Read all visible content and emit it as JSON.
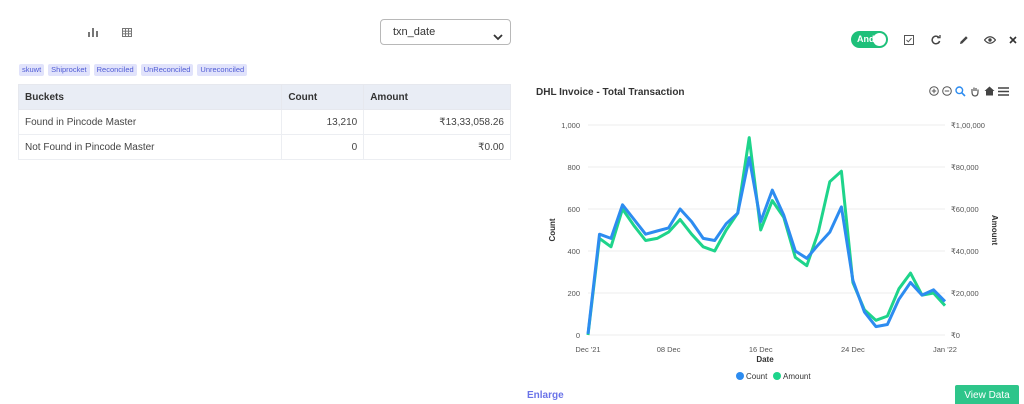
{
  "header": {
    "select": {
      "value": "txn_date"
    },
    "toggle_label": "And",
    "icons": [
      "bar-chart-icon",
      "table-icon",
      "checkbox-icon",
      "refresh-icon",
      "edit-icon",
      "eye-icon",
      "close-icon"
    ]
  },
  "tags": [
    "skuwt",
    "Shiprocket",
    "Reconciled",
    "UnReconciled",
    "Unreconciled"
  ],
  "table": {
    "headers": [
      "Buckets",
      "Count",
      "Amount"
    ],
    "rows": [
      [
        "Found in Pincode Master",
        "13,210",
        "₹13,33,058.26"
      ],
      [
        "Not Found in Pincode Master",
        "0",
        "₹0.00"
      ]
    ]
  },
  "chart_title": "DHL Invoice - Total Transaction",
  "chart_data": {
    "type": "line",
    "title": "DHL Invoice - Total Transaction",
    "xlabel": "Date",
    "ylabel": "Count",
    "y2label": "Amount",
    "x_ticks": [
      "Dec '21",
      "08 Dec",
      "16 Dec",
      "24 Dec",
      "Jan '22"
    ],
    "y_ticks": [
      "0",
      "200",
      "400",
      "600",
      "800",
      "1,000"
    ],
    "y2_ticks": [
      "₹0",
      "₹20,000",
      "₹40,000",
      "₹60,000",
      "₹80,000",
      "₹1,00,000"
    ],
    "ylim": [
      0,
      1000
    ],
    "y2lim": [
      0,
      100000
    ],
    "x": [
      "2021-12-01",
      "2021-12-02",
      "2021-12-03",
      "2021-12-04",
      "2021-12-05",
      "2021-12-06",
      "2021-12-07",
      "2021-12-08",
      "2021-12-09",
      "2021-12-10",
      "2021-12-11",
      "2021-12-12",
      "2021-12-13",
      "2021-12-14",
      "2021-12-15",
      "2021-12-16",
      "2021-12-17",
      "2021-12-18",
      "2021-12-19",
      "2021-12-20",
      "2021-12-21",
      "2021-12-22",
      "2021-12-23",
      "2021-12-24",
      "2021-12-25",
      "2021-12-26",
      "2021-12-27",
      "2021-12-28",
      "2021-12-29",
      "2021-12-30",
      "2021-12-31",
      "2022-01-01"
    ],
    "series": [
      {
        "name": "Count",
        "axis": "left",
        "color": "#2d8cf0",
        "values": [
          5,
          480,
          460,
          620,
          550,
          480,
          495,
          510,
          600,
          540,
          460,
          450,
          530,
          580,
          845,
          540,
          690,
          570,
          400,
          365,
          430,
          490,
          610,
          260,
          110,
          40,
          50,
          170,
          250,
          190,
          215,
          160
        ]
      },
      {
        "name": "Amount",
        "axis": "right",
        "color": "#1ed48b",
        "values": [
          0,
          46000,
          42000,
          60000,
          52000,
          45000,
          46000,
          49000,
          55000,
          48000,
          42000,
          40000,
          50000,
          58000,
          94000,
          50000,
          64000,
          56000,
          37000,
          33000,
          49000,
          73000,
          78000,
          25000,
          12000,
          7000,
          9000,
          22000,
          29500,
          19000,
          20000,
          14000
        ]
      }
    ],
    "legend": "bottom-center",
    "colors": {
      "count": "#2d8cf0",
      "amount": "#1ed48b"
    }
  },
  "enlarge_label": "Enlarge",
  "view_data_label": "View Data"
}
